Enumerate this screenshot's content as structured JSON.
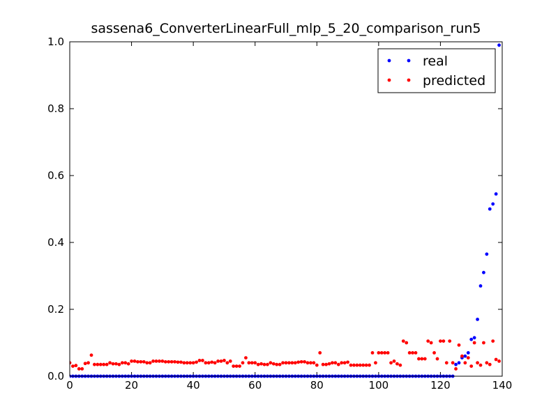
{
  "chart_data": {
    "type": "scatter",
    "title": "sassena6_ConverterLinearFull_mlp_5_20_comparison_run5",
    "x": [
      0,
      1,
      2,
      3,
      4,
      5,
      6,
      7,
      8,
      9,
      10,
      11,
      12,
      13,
      14,
      15,
      16,
      17,
      18,
      19,
      20,
      21,
      22,
      23,
      24,
      25,
      26,
      27,
      28,
      29,
      30,
      31,
      32,
      33,
      34,
      35,
      36,
      37,
      38,
      39,
      40,
      41,
      42,
      43,
      44,
      45,
      46,
      47,
      48,
      49,
      50,
      51,
      52,
      53,
      54,
      55,
      56,
      57,
      58,
      59,
      60,
      61,
      62,
      63,
      64,
      65,
      66,
      67,
      68,
      69,
      70,
      71,
      72,
      73,
      74,
      75,
      76,
      77,
      78,
      79,
      80,
      81,
      82,
      83,
      84,
      85,
      86,
      87,
      88,
      89,
      90,
      91,
      92,
      93,
      94,
      95,
      96,
      97,
      98,
      99,
      100,
      101,
      102,
      103,
      104,
      105,
      106,
      107,
      108,
      109,
      110,
      111,
      112,
      113,
      114,
      115,
      116,
      117,
      118,
      119,
      120,
      121,
      122,
      123,
      124,
      125,
      126,
      127,
      128,
      129,
      130,
      131,
      132,
      133,
      134,
      135,
      136,
      137,
      138,
      139
    ],
    "series": [
      {
        "name": "real",
        "color": "#0000ff",
        "values": [
          0,
          0,
          0,
          0,
          0,
          0,
          0,
          0,
          0,
          0,
          0,
          0,
          0,
          0,
          0,
          0,
          0,
          0,
          0,
          0,
          0,
          0,
          0,
          0,
          0,
          0,
          0,
          0,
          0,
          0,
          0,
          0,
          0,
          0,
          0,
          0,
          0,
          0,
          0,
          0,
          0,
          0,
          0,
          0,
          0,
          0,
          0,
          0,
          0,
          0,
          0,
          0,
          0,
          0,
          0,
          0,
          0,
          0,
          0,
          0,
          0,
          0,
          0,
          0,
          0,
          0,
          0,
          0,
          0,
          0,
          0,
          0,
          0,
          0,
          0,
          0,
          0,
          0,
          0,
          0,
          0,
          0,
          0,
          0,
          0,
          0,
          0,
          0,
          0,
          0,
          0,
          0,
          0,
          0,
          0,
          0,
          0,
          0,
          0,
          0,
          0,
          0,
          0,
          0,
          0,
          0,
          0,
          0,
          0,
          0,
          0,
          0,
          0,
          0,
          0,
          0,
          0,
          0,
          0,
          0,
          0,
          0,
          0,
          0,
          0,
          0.035,
          0.04,
          0.055,
          0.06,
          0.07,
          0.11,
          0.115,
          0.17,
          0.27,
          0.31,
          0.365,
          0.5,
          0.515,
          0.545,
          0.99
        ]
      },
      {
        "name": "predicted",
        "color": "#ff0000",
        "values": [
          0.04,
          0.03,
          0.032,
          0.022,
          0.022,
          0.038,
          0.04,
          0.063,
          0.035,
          0.035,
          0.035,
          0.035,
          0.035,
          0.04,
          0.037,
          0.037,
          0.035,
          0.04,
          0.04,
          0.037,
          0.045,
          0.045,
          0.043,
          0.043,
          0.043,
          0.04,
          0.04,
          0.045,
          0.045,
          0.045,
          0.045,
          0.043,
          0.043,
          0.043,
          0.043,
          0.042,
          0.042,
          0.04,
          0.04,
          0.04,
          0.04,
          0.042,
          0.047,
          0.047,
          0.04,
          0.04,
          0.042,
          0.04,
          0.045,
          0.045,
          0.047,
          0.04,
          0.045,
          0.03,
          0.03,
          0.03,
          0.04,
          0.055,
          0.04,
          0.04,
          0.04,
          0.035,
          0.037,
          0.035,
          0.035,
          0.04,
          0.037,
          0.035,
          0.035,
          0.04,
          0.04,
          0.04,
          0.04,
          0.04,
          0.042,
          0.043,
          0.043,
          0.04,
          0.04,
          0.04,
          0.033,
          0.07,
          0.035,
          0.035,
          0.037,
          0.04,
          0.04,
          0.035,
          0.04,
          0.04,
          0.042,
          0.033,
          0.033,
          0.033,
          0.033,
          0.033,
          0.033,
          0.033,
          0.07,
          0.04,
          0.07,
          0.07,
          0.07,
          0.07,
          0.04,
          0.045,
          0.037,
          0.033,
          0.105,
          0.1,
          0.07,
          0.07,
          0.07,
          0.052,
          0.052,
          0.052,
          0.105,
          0.1,
          0.07,
          0.052,
          0.105,
          0.105,
          0.04,
          0.105,
          0.04,
          0.022,
          0.093,
          0.06,
          0.04,
          0.055,
          0.03,
          0.1,
          0.04,
          0.033,
          0.1,
          0.04,
          0.035,
          0.105,
          0.05,
          0.045
        ]
      }
    ],
    "xlim": [
      0,
      140
    ],
    "xticks": [
      0,
      20,
      40,
      60,
      80,
      100,
      120,
      140
    ],
    "ylim": [
      0,
      1
    ],
    "yticks": [
      {
        "value": 0,
        "label": "0.0"
      },
      0.2,
      0.4,
      0.6,
      0.8,
      {
        "value": 1,
        "label": "1.0"
      }
    ],
    "legend": "upper right",
    "grid": false
  }
}
